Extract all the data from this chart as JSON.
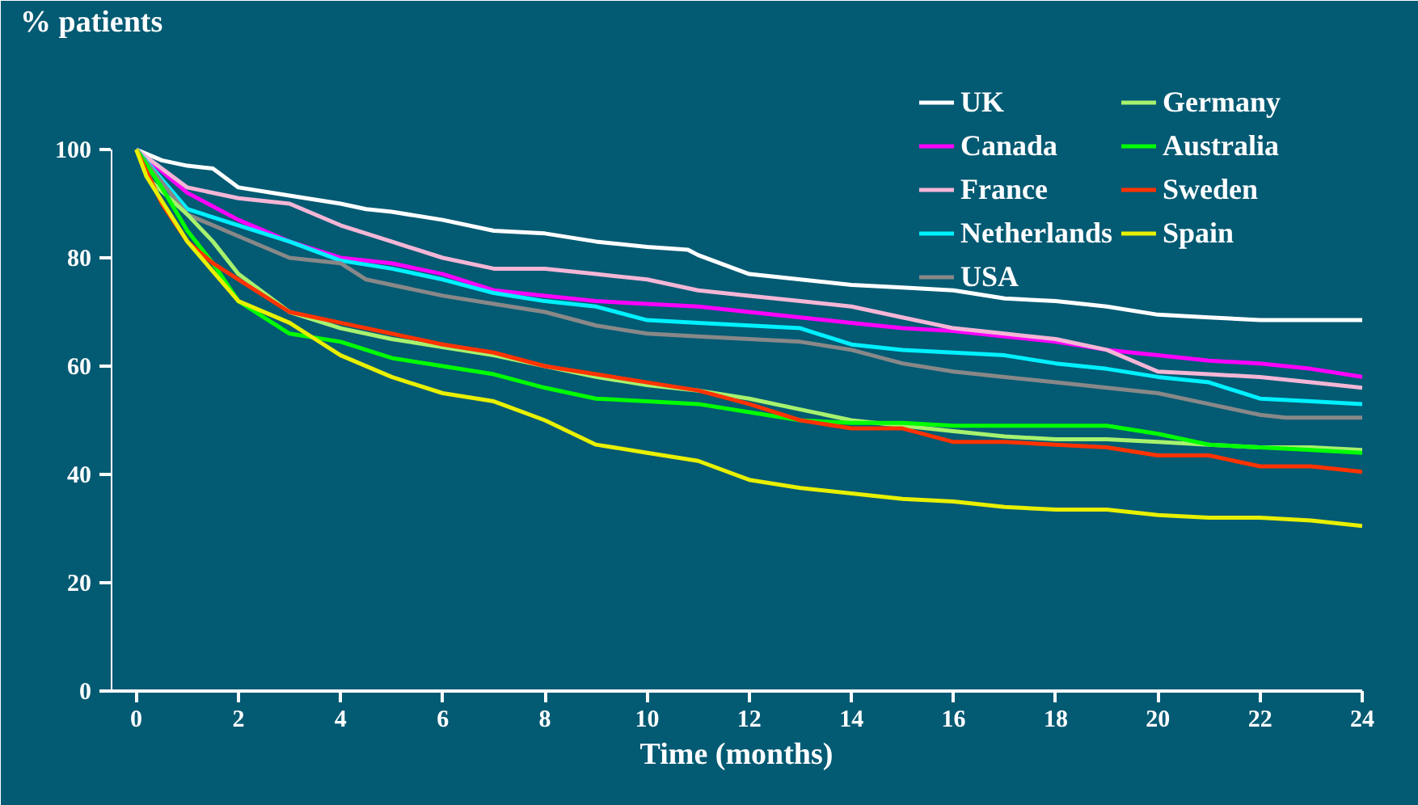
{
  "chart_data": {
    "type": "line",
    "xlabel": "Time (months)",
    "ylabel": "% patients",
    "xlim": [
      -0.5,
      24
    ],
    "ylim": [
      0,
      100
    ],
    "xticks": [
      0,
      2,
      4,
      6,
      8,
      10,
      12,
      14,
      16,
      18,
      20,
      22,
      24
    ],
    "yticks": [
      0,
      20,
      40,
      60,
      80,
      100
    ],
    "grid": false,
    "legend": "top right",
    "marker": "none",
    "line_style": "solid",
    "series": [
      {
        "name": "UK",
        "color": "#ffffff",
        "x": [
          0,
          0.5,
          1,
          1.5,
          2,
          3,
          4,
          4.5,
          5,
          6,
          7,
          8,
          9,
          10,
          10.8,
          11,
          12,
          13,
          14,
          15,
          16,
          17,
          18,
          19,
          20,
          21,
          22,
          23,
          24
        ],
        "values": [
          100,
          98,
          97,
          96.5,
          93,
          91.5,
          90,
          89,
          88.5,
          87,
          85,
          84.5,
          83,
          82,
          81.5,
          80.5,
          77,
          76,
          75,
          74.5,
          74,
          72.5,
          72,
          71,
          69.5,
          69,
          68.5,
          68.5,
          68.5
        ]
      },
      {
        "name": "Canada",
        "color": "#ff00ff",
        "x": [
          0,
          1,
          2,
          3,
          4,
          5,
          6,
          7,
          8,
          9,
          10,
          11,
          12,
          13,
          14,
          15,
          16,
          17,
          18,
          19,
          20,
          21,
          22,
          23,
          24
        ],
        "values": [
          100,
          92,
          87,
          83,
          80,
          79,
          77,
          74,
          73,
          72,
          71.5,
          71,
          70,
          69,
          68,
          67,
          66.5,
          65.5,
          64.5,
          63,
          62,
          61,
          60.5,
          59.5,
          58
        ]
      },
      {
        "name": "France",
        "color": "#f4b6d6",
        "x": [
          0,
          1,
          2,
          3,
          4,
          5,
          6,
          7,
          8,
          9,
          10,
          11,
          12,
          13,
          14,
          15,
          16,
          17,
          18,
          19,
          20,
          21,
          22,
          23,
          24
        ],
        "values": [
          100,
          93,
          91,
          90,
          86,
          83,
          80,
          78,
          78,
          77,
          76,
          74,
          73,
          72,
          71,
          69,
          67,
          66,
          65,
          63,
          59,
          58.5,
          58,
          57,
          56
        ]
      },
      {
        "name": "Netherlands",
        "color": "#00f0ff",
        "x": [
          0,
          1,
          2,
          3,
          4,
          5,
          6,
          7,
          8,
          9,
          10,
          11,
          12,
          13,
          14,
          15,
          16,
          17,
          18,
          19,
          20,
          21,
          22,
          23,
          24
        ],
        "values": [
          100,
          89,
          86,
          83,
          79.5,
          78,
          76,
          73.5,
          72,
          71,
          68.5,
          68,
          67.5,
          67,
          64,
          63,
          62.5,
          62,
          60.5,
          59.5,
          58,
          57,
          54,
          53.5,
          53
        ]
      },
      {
        "name": "USA",
        "color": "#888888",
        "x": [
          0,
          1,
          2,
          3,
          4,
          4.5,
          5,
          6,
          7,
          8,
          9,
          10,
          11,
          12,
          13,
          14,
          15,
          16,
          17,
          18,
          19,
          20,
          21,
          22,
          22.5,
          23,
          24
        ],
        "values": [
          100,
          88,
          84,
          80,
          79,
          76,
          75,
          73,
          71.5,
          70,
          67.5,
          66,
          65.5,
          65,
          64.5,
          63,
          60.5,
          59,
          58,
          57,
          56,
          55,
          53,
          51,
          50.5,
          50.5,
          50.5
        ]
      },
      {
        "name": "Germany",
        "color": "#a6f26e",
        "x": [
          0,
          0.3,
          1,
          1.5,
          2,
          3,
          4,
          5,
          6,
          7,
          8,
          9,
          10,
          11,
          12,
          13,
          14,
          15,
          16,
          17,
          18,
          19,
          20,
          21,
          22,
          23,
          24
        ],
        "values": [
          100,
          94,
          88,
          83,
          77,
          70,
          67,
          65,
          63.5,
          62,
          60,
          58,
          56.5,
          55.5,
          54,
          52,
          50,
          49,
          48,
          47,
          46.5,
          46.5,
          46,
          45.5,
          45,
          45,
          44.5
        ]
      },
      {
        "name": "Australia",
        "color": "#00ff00",
        "x": [
          0,
          0.5,
          1,
          1.5,
          2,
          3,
          4,
          5,
          6,
          7,
          8,
          9,
          10,
          11,
          12,
          13,
          14,
          15,
          16,
          17,
          18,
          19,
          20,
          21,
          22,
          23,
          24
        ],
        "values": [
          100,
          93,
          85,
          79,
          72,
          66,
          64.5,
          61.5,
          60,
          58.5,
          56,
          54,
          53.5,
          53,
          51.5,
          50,
          49.5,
          49.5,
          49,
          49,
          49,
          49,
          47.5,
          45.5,
          45,
          44.5,
          44
        ]
      },
      {
        "name": "Sweden",
        "color": "#ff3300",
        "x": [
          0,
          0.5,
          1,
          1.5,
          2,
          3,
          4,
          5,
          6,
          7,
          8,
          9,
          10,
          11,
          12,
          13,
          14,
          15,
          16,
          17,
          18,
          19,
          20,
          21,
          22,
          23,
          24
        ],
        "values": [
          100,
          90,
          83,
          79,
          76,
          70,
          68,
          66,
          64,
          62.5,
          60,
          58.5,
          57,
          55.5,
          53,
          50,
          48.5,
          48.5,
          46,
          46,
          45.5,
          45,
          43.5,
          43.5,
          41.5,
          41.5,
          40.5
        ]
      },
      {
        "name": "Spain",
        "color": "#e8f000",
        "x": [
          0,
          0.2,
          1,
          2,
          3,
          3.5,
          4,
          5,
          6,
          7,
          8,
          9,
          10,
          11,
          12,
          13,
          14,
          15,
          16,
          17,
          18,
          19,
          20,
          21,
          22,
          23,
          24
        ],
        "values": [
          100,
          95,
          83,
          72,
          68,
          65,
          62,
          58,
          55,
          53.5,
          50,
          45.5,
          44,
          42.5,
          39,
          37.5,
          36.5,
          35.5,
          35,
          34,
          33.5,
          33.5,
          32.5,
          32,
          32,
          31.5,
          30.5
        ]
      }
    ]
  }
}
